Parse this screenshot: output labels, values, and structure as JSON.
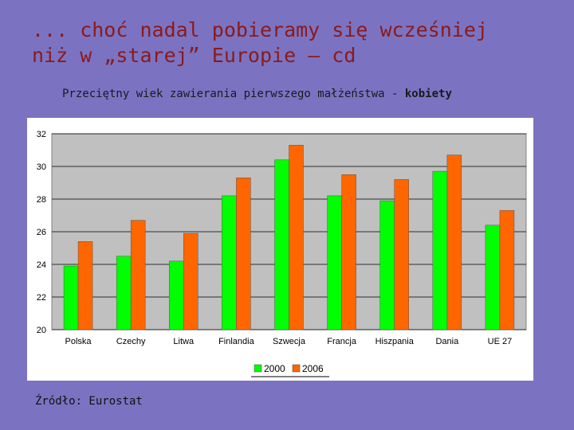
{
  "slide": {
    "title": "... choć nadal pobieramy się wcześniej\nniż w „starej” Europie – cd",
    "subtitle_main": "Przeciętny wiek zawierania pierwszego małżeństwa - ",
    "subtitle_emph": "kobiety",
    "source": "Źródło: Eurostat"
  },
  "colors": {
    "background": "#7B73C2",
    "title": "#8B1A1A",
    "plot_area": "#C0C0C0",
    "series_2000": "#00FF00",
    "series_2006": "#FF6600"
  },
  "chart_data": {
    "type": "bar",
    "title": "",
    "xlabel": "",
    "ylabel": "",
    "categories": [
      "Polska",
      "Czechy",
      "Litwa",
      "Finlandia",
      "Szwecja",
      "Francja",
      "Hiszpania",
      "Dania",
      "UE 27"
    ],
    "series": [
      {
        "name": "2000",
        "color": "#00FF00",
        "values": [
          23.9,
          24.5,
          24.2,
          28.2,
          30.4,
          28.2,
          27.9,
          29.7,
          26.4
        ]
      },
      {
        "name": "2006",
        "color": "#FF6600",
        "values": [
          25.4,
          26.7,
          25.9,
          29.3,
          31.3,
          29.5,
          29.2,
          30.7,
          27.3
        ]
      }
    ],
    "ylim": [
      20,
      32
    ],
    "yticks": [
      "20",
      "22",
      "24",
      "26",
      "28",
      "30",
      "32"
    ],
    "grid": true,
    "legend": "bottom"
  }
}
